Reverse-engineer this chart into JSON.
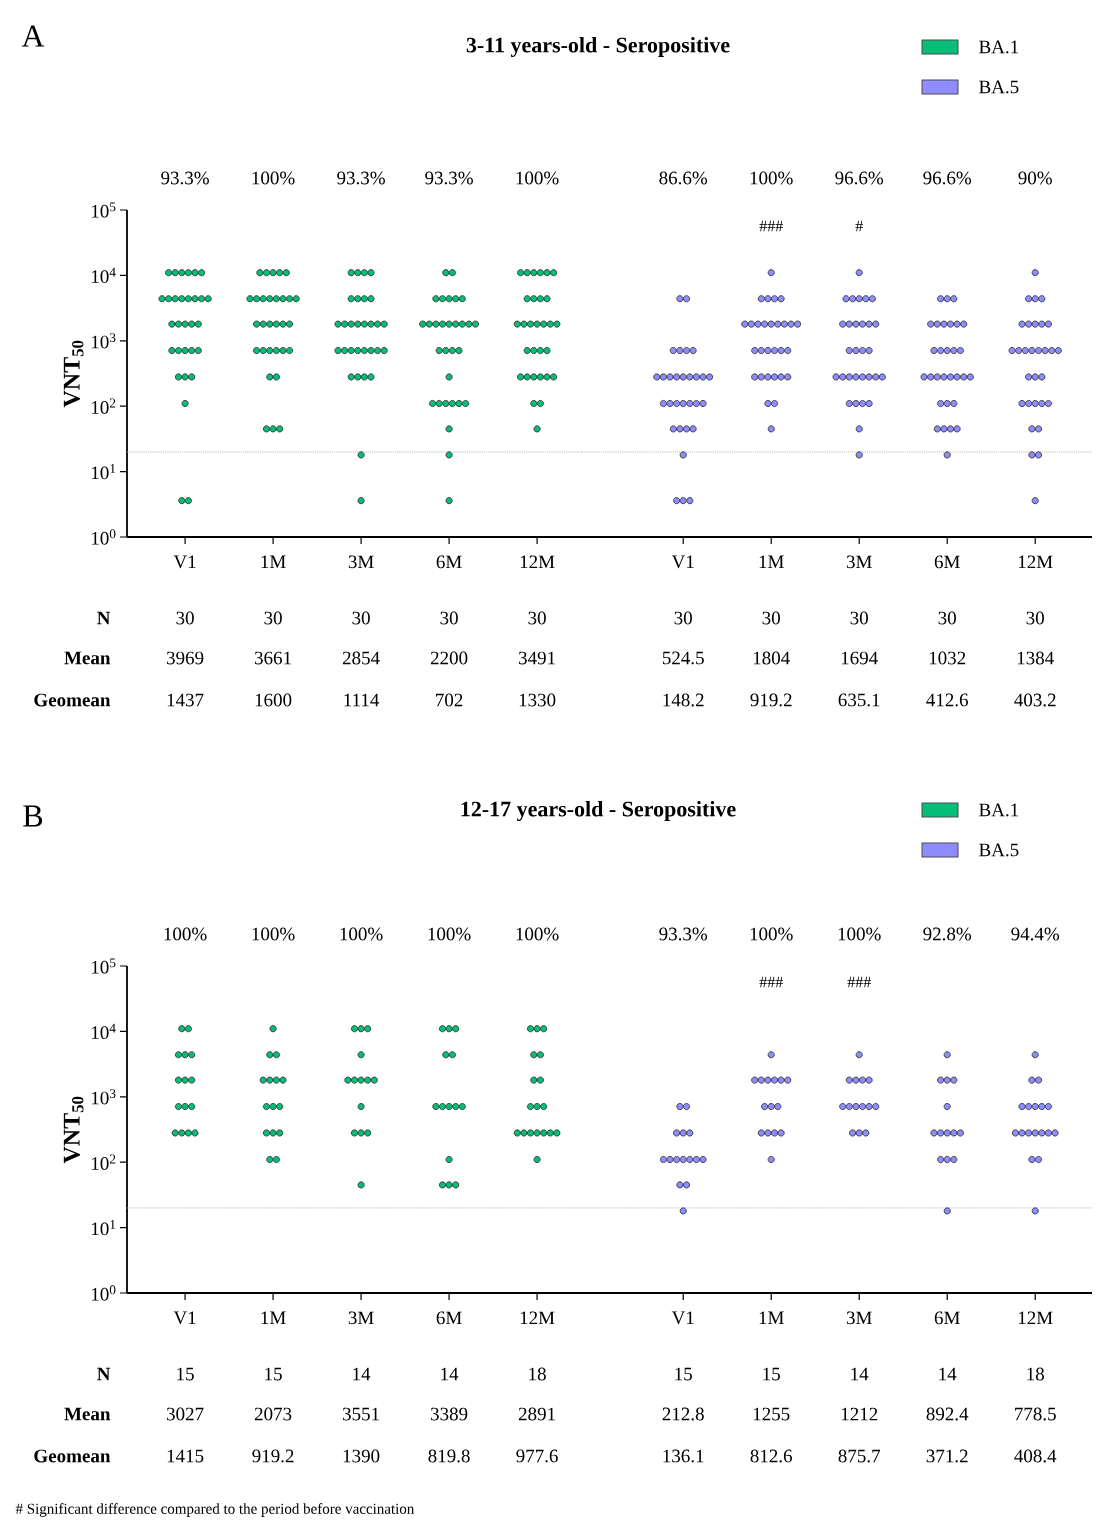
{
  "chart_data": [
    {
      "type": "scatter",
      "title": "3-11 years-old - Seropositive",
      "ylabel": "VNT$_{50}$",
      "categories": [
        "V1",
        "1M",
        "3M",
        "6M",
        "12M"
      ],
      "log": "y",
      "ylim": [
        1,
        100000
      ],
      "yticks": [
        {
          "value": 1,
          "label": "10$^{0}$"
        },
        {
          "value": 10,
          "label": "10$^{1}$"
        },
        {
          "value": 100,
          "label": "10$^{2}$"
        },
        {
          "value": 1000,
          "label": "10$^{3}$"
        },
        {
          "value": 10000,
          "label": "10$^{4}$"
        },
        {
          "value": 100000,
          "label": "10$^{5}$"
        }
      ],
      "marker": "circle",
      "legend": "top right",
      "ref_lines": [
        {
          "axis": "y",
          "value": 20,
          "color": "#aaaaaa",
          "line_style": "dotted"
        }
      ],
      "series": [
        {
          "name": "BA.1",
          "color": "#06be78",
          "x": [
            "V1",
            "V1",
            "V1",
            "V1",
            "V1",
            "V1",
            "V1",
            "V1",
            "V1",
            "V1",
            "V1",
            "V1",
            "V1",
            "V1",
            "V1",
            "V1",
            "V1",
            "V1",
            "V1",
            "V1",
            "V1",
            "V1",
            "V1",
            "V1",
            "V1",
            "V1",
            "V1",
            "V1",
            "V1",
            "V1",
            "1M",
            "1M",
            "1M",
            "1M",
            "1M",
            "1M",
            "1M",
            "1M",
            "1M",
            "1M",
            "1M",
            "1M",
            "1M",
            "1M",
            "1M",
            "1M",
            "1M",
            "1M",
            "1M",
            "1M",
            "1M",
            "1M",
            "1M",
            "1M",
            "1M",
            "1M",
            "1M",
            "1M",
            "1M",
            "1M",
            "3M",
            "3M",
            "3M",
            "3M",
            "3M",
            "3M",
            "3M",
            "3M",
            "3M",
            "3M",
            "3M",
            "3M",
            "3M",
            "3M",
            "3M",
            "3M",
            "3M",
            "3M",
            "3M",
            "3M",
            "3M",
            "3M",
            "3M",
            "3M",
            "3M",
            "3M",
            "3M",
            "3M",
            "3M",
            "3M",
            "6M",
            "6M",
            "6M",
            "6M",
            "6M",
            "6M",
            "6M",
            "6M",
            "6M",
            "6M",
            "6M",
            "6M",
            "6M",
            "6M",
            "6M",
            "6M",
            "6M",
            "6M",
            "6M",
            "6M",
            "6M",
            "6M",
            "6M",
            "6M",
            "6M",
            "6M",
            "6M",
            "6M",
            "6M",
            "6M",
            "12M",
            "12M",
            "12M",
            "12M",
            "12M",
            "12M",
            "12M",
            "12M",
            "12M",
            "12M",
            "12M",
            "12M",
            "12M",
            "12M",
            "12M",
            "12M",
            "12M",
            "12M",
            "12M",
            "12M",
            "12M",
            "12M",
            "12M",
            "12M",
            "12M",
            "12M",
            "12M",
            "12M",
            "12M",
            "12M"
          ],
          "values": [
            11000,
            11000,
            11000,
            11000,
            11000,
            11000,
            4400,
            4400,
            4400,
            4400,
            4400,
            4400,
            4400,
            4400,
            1800,
            1800,
            1800,
            1800,
            1800,
            710,
            710,
            710,
            710,
            710,
            280,
            280,
            280,
            110,
            3.6,
            3.6,
            11000,
            11000,
            11000,
            11000,
            11000,
            4400,
            4400,
            4400,
            4400,
            4400,
            4400,
            4400,
            4400,
            1800,
            1800,
            1800,
            1800,
            1800,
            1800,
            710,
            710,
            710,
            710,
            710,
            710,
            280,
            280,
            45,
            45,
            45,
            11000,
            11000,
            11000,
            11000,
            4400,
            4400,
            4400,
            4400,
            1800,
            1800,
            1800,
            1800,
            1800,
            1800,
            1800,
            1800,
            710,
            710,
            710,
            710,
            710,
            710,
            710,
            710,
            280,
            280,
            280,
            280,
            18,
            3.6,
            11000,
            11000,
            4400,
            4400,
            4400,
            4400,
            4400,
            1800,
            1800,
            1800,
            1800,
            1800,
            1800,
            1800,
            1800,
            1800,
            710,
            710,
            710,
            710,
            280,
            110,
            110,
            110,
            110,
            110,
            110,
            45,
            18,
            3.6,
            11000,
            11000,
            11000,
            11000,
            11000,
            11000,
            4400,
            4400,
            4400,
            4400,
            1800,
            1800,
            1800,
            1800,
            1800,
            1800,
            1800,
            710,
            710,
            710,
            710,
            280,
            280,
            280,
            280,
            280,
            280,
            110,
            110,
            45
          ]
        }
      ],
      "annotations": [
        "A",
        "N",
        "Mean",
        "Geomean",
        "93.3%",
        "100%",
        "93.3%",
        "93.3%",
        "100%",
        "30",
        "30",
        "30",
        "30",
        "30",
        "3969",
        "3661",
        "2854",
        "2200",
        "3491",
        "1437",
        "1600",
        "1114",
        "702",
        "1330"
      ]
    },
    {
      "type": "scatter",
      "categories": [
        "V1",
        "1M",
        "3M",
        "6M",
        "12M"
      ],
      "log": "y",
      "ylim": [
        1,
        100000
      ],
      "tick_labels": "x",
      "marker": "circle",
      "legend": "top right",
      "ref_lines": [
        {
          "axis": "y",
          "value": 20,
          "color": "#aaaaaa",
          "line_style": "dotted"
        }
      ],
      "series": [
        {
          "name": "BA.5",
          "color": "#8f8cff",
          "x": [
            "V1",
            "V1",
            "V1",
            "V1",
            "V1",
            "V1",
            "V1",
            "V1",
            "V1",
            "V1",
            "V1",
            "V1",
            "V1",
            "V1",
            "V1",
            "V1",
            "V1",
            "V1",
            "V1",
            "V1",
            "V1",
            "V1",
            "V1",
            "V1",
            "V1",
            "V1",
            "V1",
            "V1",
            "V1",
            "V1",
            "1M",
            "1M",
            "1M",
            "1M",
            "1M",
            "1M",
            "1M",
            "1M",
            "1M",
            "1M",
            "1M",
            "1M",
            "1M",
            "1M",
            "1M",
            "1M",
            "1M",
            "1M",
            "1M",
            "1M",
            "1M",
            "1M",
            "1M",
            "1M",
            "1M",
            "1M",
            "1M",
            "1M",
            "1M",
            "3M",
            "3M",
            "3M",
            "3M",
            "3M",
            "3M",
            "3M",
            "3M",
            "3M",
            "3M",
            "3M",
            "3M",
            "3M",
            "3M",
            "3M",
            "3M",
            "3M",
            "3M",
            "3M",
            "3M",
            "3M",
            "3M",
            "3M",
            "3M",
            "3M",
            "3M",
            "3M",
            "3M",
            "3M",
            "3M",
            "6M",
            "6M",
            "6M",
            "6M",
            "6M",
            "6M",
            "6M",
            "6M",
            "6M",
            "6M",
            "6M",
            "6M",
            "6M",
            "6M",
            "6M",
            "6M",
            "6M",
            "6M",
            "6M",
            "6M",
            "6M",
            "6M",
            "6M",
            "6M",
            "6M",
            "6M",
            "6M",
            "6M",
            "6M",
            "6M",
            "12M",
            "12M",
            "12M",
            "12M",
            "12M",
            "12M",
            "12M",
            "12M",
            "12M",
            "12M",
            "12M",
            "12M",
            "12M",
            "12M",
            "12M",
            "12M",
            "12M",
            "12M",
            "12M",
            "12M",
            "12M",
            "12M",
            "12M",
            "12M",
            "12M",
            "12M",
            "12M",
            "12M",
            "12M",
            "12M"
          ],
          "values": [
            4400,
            4400,
            710,
            710,
            710,
            710,
            280,
            280,
            280,
            280,
            280,
            280,
            280,
            280,
            280,
            110,
            110,
            110,
            110,
            110,
            110,
            110,
            45,
            45,
            45,
            45,
            18,
            3.6,
            3.6,
            3.6,
            11000,
            4400,
            4400,
            4400,
            4400,
            1800,
            1800,
            1800,
            1800,
            1800,
            1800,
            1800,
            1800,
            1800,
            710,
            710,
            710,
            710,
            710,
            710,
            280,
            280,
            280,
            280,
            280,
            280,
            110,
            110,
            45,
            11000,
            4400,
            4400,
            4400,
            4400,
            4400,
            1800,
            1800,
            1800,
            1800,
            1800,
            1800,
            710,
            710,
            710,
            710,
            280,
            280,
            280,
            280,
            280,
            280,
            280,
            280,
            110,
            110,
            110,
            110,
            45,
            18,
            4400,
            4400,
            4400,
            1800,
            1800,
            1800,
            1800,
            1800,
            1800,
            710,
            710,
            710,
            710,
            710,
            280,
            280,
            280,
            280,
            280,
            280,
            280,
            280,
            110,
            110,
            110,
            45,
            45,
            45,
            45,
            18,
            11000,
            4400,
            4400,
            4400,
            1800,
            1800,
            1800,
            1800,
            1800,
            710,
            710,
            710,
            710,
            710,
            710,
            710,
            710,
            280,
            280,
            280,
            110,
            110,
            110,
            110,
            110,
            45,
            45,
            18,
            18,
            3.6
          ]
        }
      ],
      "annotations": [
        "86.6%",
        "100%",
        "96.6%",
        "96.6%",
        "90%",
        "30",
        "30",
        "30",
        "30",
        "30",
        "524.5",
        "1804",
        "1694",
        "1032",
        "1384",
        "148.2",
        "919.2",
        "635.1",
        "412.6",
        "403.2",
        "###",
        "#"
      ]
    },
    {
      "type": "scatter",
      "title": "12-17 years-old - Seropositive",
      "ylabel": "VNT$_{50}$",
      "categories": [
        "V1",
        "1M",
        "3M",
        "6M",
        "12M"
      ],
      "log": "y",
      "ylim": [
        1,
        100000
      ],
      "yticks": [
        {
          "value": 1,
          "label": "10$^{0}$"
        },
        {
          "value": 10,
          "label": "10$^{1}$"
        },
        {
          "value": 100,
          "label": "10$^{2}$"
        },
        {
          "value": 1000,
          "label": "10$^{3}$"
        },
        {
          "value": 10000,
          "label": "10$^{4}$"
        },
        {
          "value": 100000,
          "label": "10$^{5}$"
        }
      ],
      "marker": "circle",
      "legend": "top right",
      "ref_lines": [
        {
          "axis": "y",
          "value": 20,
          "color": "#aaaaaa",
          "line_style": "dotted"
        }
      ],
      "series": [
        {
          "name": "BA.1",
          "color": "#06be78",
          "x": [
            "V1",
            "V1",
            "V1",
            "V1",
            "V1",
            "V1",
            "V1",
            "V1",
            "V1",
            "V1",
            "V1",
            "V1",
            "V1",
            "V1",
            "V1",
            "1M",
            "1M",
            "1M",
            "1M",
            "1M",
            "1M",
            "1M",
            "1M",
            "1M",
            "1M",
            "1M",
            "1M",
            "1M",
            "1M",
            "1M",
            "3M",
            "3M",
            "3M",
            "3M",
            "3M",
            "3M",
            "3M",
            "3M",
            "3M",
            "3M",
            "3M",
            "3M",
            "3M",
            "3M",
            "6M",
            "6M",
            "6M",
            "6M",
            "6M",
            "6M",
            "6M",
            "6M",
            "6M",
            "6M",
            "6M",
            "6M",
            "6M",
            "6M",
            "12M",
            "12M",
            "12M",
            "12M",
            "12M",
            "12M",
            "12M",
            "12M",
            "12M",
            "12M",
            "12M",
            "12M",
            "12M",
            "12M",
            "12M",
            "12M",
            "12M",
            "12M"
          ],
          "values": [
            11000,
            11000,
            4400,
            4400,
            4400,
            1800,
            1800,
            1800,
            710,
            710,
            710,
            280,
            280,
            280,
            280,
            11000,
            4400,
            4400,
            1800,
            1800,
            1800,
            1800,
            710,
            710,
            710,
            280,
            280,
            280,
            110,
            110,
            11000,
            11000,
            11000,
            4400,
            1800,
            1800,
            1800,
            1800,
            1800,
            710,
            280,
            280,
            280,
            45,
            11000,
            11000,
            11000,
            4400,
            4400,
            710,
            710,
            710,
            710,
            710,
            110,
            45,
            45,
            45,
            11000,
            11000,
            11000,
            4400,
            4400,
            1800,
            1800,
            710,
            710,
            710,
            280,
            280,
            280,
            280,
            280,
            280,
            280,
            110
          ]
        }
      ],
      "annotations": [
        "B",
        "N",
        "Mean",
        "Geomean",
        "100%",
        "100%",
        "100%",
        "100%",
        "100%",
        "15",
        "15",
        "14",
        "14",
        "18",
        "3027",
        "2073",
        "3551",
        "3389",
        "2891",
        "1415",
        "919.2",
        "1390",
        "819.8",
        "977.6"
      ]
    },
    {
      "type": "scatter",
      "categories": [
        "V1",
        "1M",
        "3M",
        "6M",
        "12M"
      ],
      "log": "y",
      "ylim": [
        1,
        100000
      ],
      "tick_labels": "x",
      "marker": "circle",
      "legend": "top right",
      "ref_lines": [
        {
          "axis": "y",
          "value": 20,
          "color": "#aaaaaa",
          "line_style": "dotted"
        }
      ],
      "series": [
        {
          "name": "BA.5",
          "color": "#8f8cff",
          "x": [
            "V1",
            "V1",
            "V1",
            "V1",
            "V1",
            "V1",
            "V1",
            "V1",
            "V1",
            "V1",
            "V1",
            "V1",
            "V1",
            "V1",
            "V1",
            "1M",
            "1M",
            "1M",
            "1M",
            "1M",
            "1M",
            "1M",
            "1M",
            "1M",
            "1M",
            "1M",
            "1M",
            "1M",
            "1M",
            "1M",
            "3M",
            "3M",
            "3M",
            "3M",
            "3M",
            "3M",
            "3M",
            "3M",
            "3M",
            "3M",
            "3M",
            "3M",
            "3M",
            "3M",
            "6M",
            "6M",
            "6M",
            "6M",
            "6M",
            "6M",
            "6M",
            "6M",
            "6M",
            "6M",
            "6M",
            "6M",
            "6M",
            "6M",
            "12M",
            "12M",
            "12M",
            "12M",
            "12M",
            "12M",
            "12M",
            "12M",
            "12M",
            "12M",
            "12M",
            "12M",
            "12M",
            "12M",
            "12M",
            "12M",
            "12M",
            "12M"
          ],
          "values": [
            710,
            710,
            280,
            280,
            280,
            110,
            110,
            110,
            110,
            110,
            110,
            110,
            45,
            45,
            18,
            4400,
            1800,
            1800,
            1800,
            1800,
            1800,
            1800,
            710,
            710,
            710,
            280,
            280,
            280,
            280,
            110,
            4400,
            1800,
            1800,
            1800,
            1800,
            710,
            710,
            710,
            710,
            710,
            710,
            280,
            280,
            280,
            4400,
            1800,
            1800,
            1800,
            710,
            280,
            280,
            280,
            280,
            280,
            110,
            110,
            110,
            18,
            4400,
            1800,
            1800,
            710,
            710,
            710,
            710,
            710,
            280,
            280,
            280,
            280,
            280,
            280,
            280,
            110,
            110,
            18
          ]
        }
      ],
      "annotations": [
        "# Significant difference compared to the period before vaccination",
        "93.3%",
        "100%",
        "100%",
        "92.8%",
        "94.4%",
        "15",
        "15",
        "14",
        "14",
        "18",
        "212.8",
        "1255",
        "1212",
        "892.4",
        "778.5",
        "136.1",
        "812.6",
        "875.7",
        "371.2",
        "408.4",
        "###",
        "###"
      ]
    }
  ]
}
